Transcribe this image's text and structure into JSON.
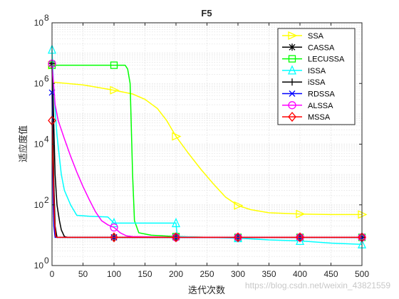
{
  "chart_data": {
    "type": "line",
    "title": "F5",
    "xlabel": "迭代次数",
    "ylabel": "适应度值",
    "xlim": [
      0,
      500
    ],
    "ylim": [
      1,
      100000000
    ],
    "yscale": "log",
    "grid": true,
    "legend_position": "top-right",
    "x_ticks": [
      "0",
      "50",
      "100",
      "150",
      "200",
      "250",
      "300",
      "350",
      "400",
      "450",
      "500"
    ],
    "y_ticks": [
      {
        "value": 1,
        "base": "10",
        "exp": "0"
      },
      {
        "value": 100,
        "base": "10",
        "exp": "2"
      },
      {
        "value": 10000,
        "base": "10",
        "exp": "4"
      },
      {
        "value": 1000000,
        "base": "10",
        "exp": "6"
      },
      {
        "value": 100000000,
        "base": "10",
        "exp": "8"
      }
    ],
    "series": [
      {
        "name": "SSA",
        "color": "#ffff00",
        "marker": "triangle-right",
        "points": [
          [
            0,
            4000000
          ],
          [
            2,
            1100000
          ],
          [
            50,
            900000
          ],
          [
            100,
            600000
          ],
          [
            130,
            450000
          ],
          [
            150,
            300000
          ],
          [
            170,
            150000
          ],
          [
            185,
            60000
          ],
          [
            200,
            18000
          ],
          [
            220,
            5000
          ],
          [
            240,
            1500
          ],
          [
            260,
            500
          ],
          [
            280,
            180
          ],
          [
            300,
            95
          ],
          [
            320,
            70
          ],
          [
            350,
            55
          ],
          [
            400,
            50
          ],
          [
            450,
            48
          ],
          [
            500,
            48
          ]
        ]
      },
      {
        "name": "CASSA",
        "color": "#000000",
        "marker": "asterisk",
        "points": [
          [
            0,
            4500000
          ],
          [
            2,
            200000
          ],
          [
            5,
            1000
          ],
          [
            8,
            100
          ],
          [
            12,
            30
          ],
          [
            15,
            15
          ],
          [
            20,
            9
          ],
          [
            25,
            8.5
          ],
          [
            100,
            8.5
          ],
          [
            200,
            8.5
          ],
          [
            300,
            8.5
          ],
          [
            400,
            8.5
          ],
          [
            500,
            8.5
          ]
        ]
      },
      {
        "name": "LECUSSA",
        "color": "#00ff00",
        "marker": "square",
        "points": [
          [
            0,
            4000000
          ],
          [
            100,
            4000000
          ],
          [
            118,
            4000000
          ],
          [
            122,
            3000000
          ],
          [
            126,
            1000000
          ],
          [
            130,
            1000
          ],
          [
            133,
            30
          ],
          [
            140,
            12
          ],
          [
            160,
            10
          ],
          [
            200,
            9
          ],
          [
            250,
            8.5
          ],
          [
            300,
            8.5
          ],
          [
            400,
            8.5
          ],
          [
            500,
            8.5
          ]
        ]
      },
      {
        "name": "ISSA",
        "color": "#00ffff",
        "marker": "triangle-up",
        "points": [
          [
            0,
            13000000
          ],
          [
            3,
            500000
          ],
          [
            8,
            20000
          ],
          [
            15,
            1000
          ],
          [
            20,
            300
          ],
          [
            30,
            100
          ],
          [
            40,
            45
          ],
          [
            60,
            42
          ],
          [
            90,
            40
          ],
          [
            100,
            25
          ],
          [
            130,
            25
          ],
          [
            170,
            25
          ],
          [
            200,
            25
          ],
          [
            202,
            9
          ],
          [
            250,
            8.5
          ],
          [
            300,
            8
          ],
          [
            350,
            7
          ],
          [
            400,
            6.5
          ],
          [
            450,
            5.5
          ],
          [
            500,
            5
          ]
        ]
      },
      {
        "name": "iSSA",
        "color": "#000000",
        "marker": "plus",
        "points": [
          [
            0,
            4500000
          ],
          [
            1,
            100000
          ],
          [
            3,
            500
          ],
          [
            5,
            20
          ],
          [
            8,
            8.5
          ],
          [
            100,
            8.5
          ],
          [
            200,
            8.5
          ],
          [
            300,
            8.5
          ],
          [
            400,
            8.5
          ],
          [
            500,
            8.5
          ]
        ]
      },
      {
        "name": "RDSSA",
        "color": "#0000ff",
        "marker": "x",
        "points": [
          [
            0,
            500000
          ],
          [
            1,
            5000
          ],
          [
            2,
            100
          ],
          [
            3,
            20
          ],
          [
            5,
            8.5
          ],
          [
            100,
            8.5
          ],
          [
            200,
            8.5
          ],
          [
            300,
            8.5
          ],
          [
            400,
            8.5
          ],
          [
            500,
            8.5
          ]
        ]
      },
      {
        "name": "ALSSA",
        "color": "#ff00ff",
        "marker": "circle",
        "points": [
          [
            0,
            4500000
          ],
          [
            5,
            200000
          ],
          [
            10,
            60000
          ],
          [
            20,
            15000
          ],
          [
            30,
            4000
          ],
          [
            40,
            1200
          ],
          [
            50,
            400
          ],
          [
            60,
            150
          ],
          [
            70,
            60
          ],
          [
            80,
            30
          ],
          [
            90,
            22
          ],
          [
            100,
            18
          ],
          [
            110,
            12
          ],
          [
            120,
            9.5
          ],
          [
            130,
            9
          ],
          [
            200,
            8.5
          ],
          [
            300,
            8.5
          ],
          [
            400,
            8.5
          ],
          [
            500,
            8.5
          ]
        ]
      },
      {
        "name": "MSSA",
        "color": "#ff0000",
        "marker": "diamond",
        "points": [
          [
            0,
            60000
          ],
          [
            2,
            1000
          ],
          [
            4,
            30
          ],
          [
            6,
            9
          ],
          [
            8,
            8.5
          ],
          [
            100,
            8.5
          ],
          [
            200,
            8.5
          ],
          [
            300,
            8.5
          ],
          [
            400,
            8.5
          ],
          [
            500,
            8.5
          ]
        ]
      }
    ],
    "marker_x": [
      0,
      100,
      200,
      300,
      400,
      500
    ]
  },
  "watermark": "https://blog.csdn.net/weixin_43821559"
}
